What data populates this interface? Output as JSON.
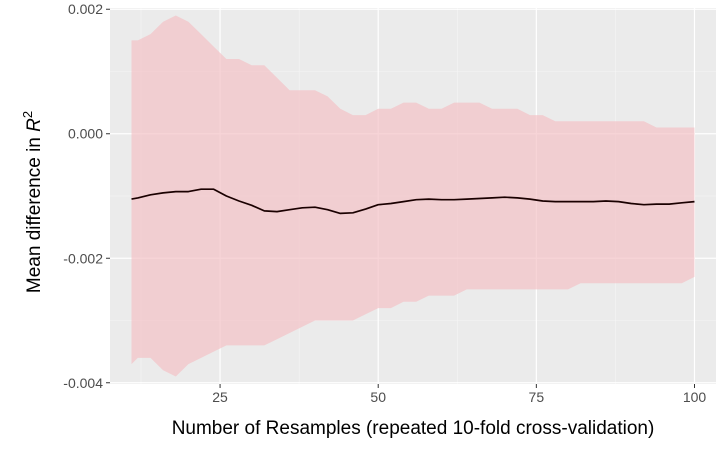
{
  "chart_data": {
    "type": "line",
    "title": "",
    "xlabel": "Number of Resamples (repeated 10-fold cross-validation)",
    "ylabel": "Mean difference in R",
    "ylabel_superscript": "2",
    "xlim": [
      7.6,
      103.4
    ],
    "ylim": [
      -0.00402,
      0.00202
    ],
    "x_ticks": [
      25,
      50,
      75,
      100
    ],
    "x_tick_labels": [
      "25",
      "50",
      "75",
      "100"
    ],
    "y_ticks": [
      -0.004,
      -0.002,
      0.0,
      0.002
    ],
    "y_tick_labels": [
      "-0.004",
      "-0.002",
      "0.000",
      "0.002"
    ],
    "grid": true,
    "colors": {
      "panel_background": "#ebebeb",
      "grid_major": "#ffffff",
      "ribbon_fill": "#f4c2c6",
      "line": "#1a0000"
    },
    "series": [
      {
        "x": [
          11,
          12,
          14,
          16,
          18,
          20,
          22,
          24,
          26,
          28,
          30,
          32,
          34,
          36,
          38,
          40,
          42,
          44,
          46,
          48,
          50,
          52,
          54,
          56,
          58,
          60,
          62,
          64,
          66,
          68,
          70,
          72,
          74,
          76,
          78,
          80,
          82,
          84,
          86,
          88,
          90,
          92,
          94,
          96,
          98,
          100
        ],
        "mean": [
          -0.00105,
          -0.00103,
          -0.00098,
          -0.00095,
          -0.00093,
          -0.00093,
          -0.00089,
          -0.00089,
          -0.001,
          -0.00108,
          -0.00115,
          -0.00124,
          -0.00125,
          -0.00122,
          -0.00119,
          -0.00118,
          -0.00122,
          -0.00128,
          -0.00127,
          -0.00121,
          -0.00114,
          -0.00112,
          -0.00109,
          -0.00106,
          -0.00105,
          -0.00106,
          -0.00106,
          -0.00105,
          -0.00104,
          -0.00103,
          -0.00102,
          -0.00103,
          -0.00105,
          -0.00108,
          -0.00109,
          -0.00109,
          -0.00109,
          -0.00109,
          -0.00108,
          -0.00109,
          -0.00112,
          -0.00114,
          -0.00113,
          -0.00113,
          -0.00111,
          -0.00109
        ],
        "upper": [
          0.0015,
          0.0015,
          0.0016,
          0.0018,
          0.0019,
          0.0018,
          0.0016,
          0.0014,
          0.0012,
          0.0012,
          0.0011,
          0.0011,
          0.0009,
          0.0007,
          0.0007,
          0.0007,
          0.0006,
          0.0004,
          0.0003,
          0.0003,
          0.0004,
          0.0004,
          0.0005,
          0.0005,
          0.0004,
          0.0004,
          0.0005,
          0.0005,
          0.0005,
          0.0004,
          0.0004,
          0.0004,
          0.0003,
          0.0003,
          0.0002,
          0.0002,
          0.0002,
          0.0002,
          0.0002,
          0.0002,
          0.0002,
          0.0002,
          0.0001,
          0.0001,
          0.0001,
          0.0001
        ],
        "lower": [
          -0.0037,
          -0.0036,
          -0.0036,
          -0.0038,
          -0.0039,
          -0.0037,
          -0.0036,
          -0.0035,
          -0.0034,
          -0.0034,
          -0.0034,
          -0.0034,
          -0.0033,
          -0.0032,
          -0.0031,
          -0.003,
          -0.003,
          -0.003,
          -0.003,
          -0.0029,
          -0.0028,
          -0.0028,
          -0.0027,
          -0.0027,
          -0.0026,
          -0.0026,
          -0.0026,
          -0.0025,
          -0.0025,
          -0.0025,
          -0.0025,
          -0.0025,
          -0.0025,
          -0.0025,
          -0.0025,
          -0.0025,
          -0.0024,
          -0.0024,
          -0.0024,
          -0.0024,
          -0.0024,
          -0.0024,
          -0.0024,
          -0.0024,
          -0.0024,
          -0.0023
        ]
      }
    ]
  }
}
